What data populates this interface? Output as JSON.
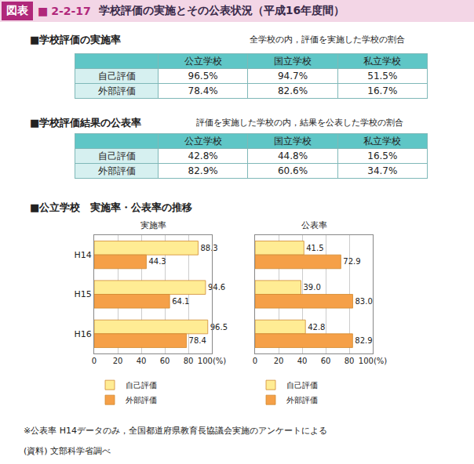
{
  "header": {
    "label": "図表",
    "mark": "■",
    "number": "2-2-17",
    "title": "学校評価の実施とその公表状況（平成16年度間）"
  },
  "tables": [
    {
      "title": "■学校評価の実施率",
      "note": "全学校の内，評価を実施した学校の割合",
      "columns": [
        "公立学校",
        "国立学校",
        "私立学校"
      ],
      "rows": [
        {
          "label": "自己評価",
          "cells": [
            "96.5%",
            "94.7%",
            "51.5%"
          ]
        },
        {
          "label": "外部評価",
          "cells": [
            "78.4%",
            "82.6%",
            "16.7%"
          ]
        }
      ]
    },
    {
      "title": "■学校評価結果の公表率",
      "note": "評価を実施した学校の内，結果を公表した学校の割合",
      "columns": [
        "公立学校",
        "国立学校",
        "私立学校"
      ],
      "rows": [
        {
          "label": "自己評価",
          "cells": [
            "42.8%",
            "44.8%",
            "16.5%"
          ]
        },
        {
          "label": "外部評価",
          "cells": [
            "82.9%",
            "60.6%",
            "34.7%"
          ]
        }
      ]
    }
  ],
  "section_title": "■公立学校　実施率・公表率の推移",
  "chart_data": [
    {
      "type": "bar",
      "orientation": "horizontal",
      "title": "実施率",
      "categories": [
        "H14",
        "H15",
        "H16"
      ],
      "series": [
        {
          "name": "自己評価",
          "color": "#ffec94",
          "values": [
            88.3,
            94.6,
            96.5
          ]
        },
        {
          "name": "外部評価",
          "color": "#f5a048",
          "values": [
            44.3,
            64.1,
            78.4
          ]
        }
      ],
      "xlim": [
        0,
        100
      ],
      "xticks": [
        0,
        20,
        40,
        60,
        80,
        {
          "value": 100,
          "label": "100(%)"
        }
      ],
      "grid": true,
      "data_labels": true,
      "legend": "bottom"
    },
    {
      "type": "bar",
      "orientation": "horizontal",
      "title": "公表率",
      "categories": [
        "H14",
        "H15",
        "H16"
      ],
      "series": [
        {
          "name": "自己評価",
          "color": "#ffec94",
          "values": [
            41.5,
            39.0,
            42.8
          ],
          "value_labels": [
            "41.5",
            "39.0",
            "42.8"
          ]
        },
        {
          "name": "外部評価",
          "color": "#f5a048",
          "values": [
            72.9,
            83.0,
            82.9
          ],
          "value_labels": [
            "72.9",
            "83.0",
            "82.9"
          ]
        }
      ],
      "xlim": [
        0,
        100
      ],
      "xticks": [
        0,
        20,
        40,
        60,
        80,
        {
          "value": 100,
          "label": "100(%)"
        }
      ],
      "grid": true,
      "data_labels": true,
      "legend": "bottom",
      "tick_labels": "x"
    }
  ],
  "footnotes": [
    "※公表率 H14データのみ，全国都道府県教育長協議会実施のアンケートによる",
    "(資料) 文部科学省調べ"
  ]
}
